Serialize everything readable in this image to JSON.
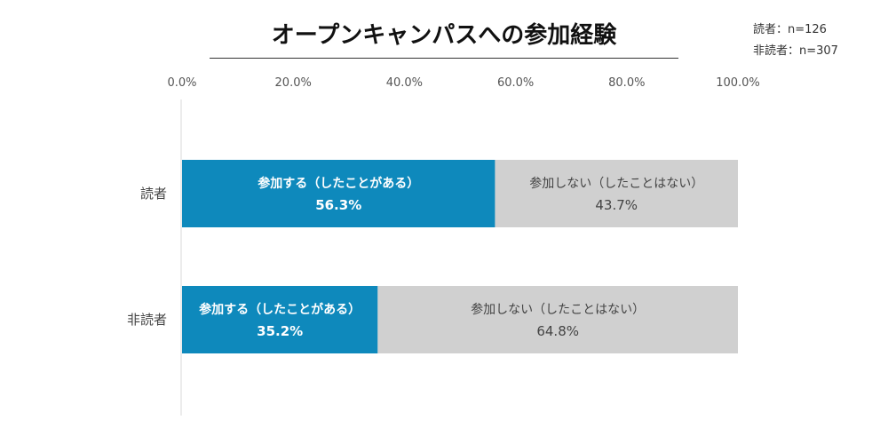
{
  "chart_data": {
    "type": "bar",
    "orientation": "horizontal",
    "stacked": true,
    "title": "オープンキャンパスへの参加経験",
    "sample_sizes": [
      "読者：n=126",
      "非読者：n=307"
    ],
    "categories": [
      "読者",
      "非読者"
    ],
    "series": [
      {
        "name": "参加する（したことがある）",
        "values": [
          56.3,
          35.2
        ],
        "labels": [
          "56.3%",
          "35.2%"
        ],
        "color": "#0e89bc"
      },
      {
        "name": "参加しない（したことはない）",
        "values": [
          43.7,
          64.8
        ],
        "labels": [
          "43.7%",
          "64.8%"
        ],
        "color": "#d0d0d0"
      }
    ],
    "xlim": [
      0,
      100
    ],
    "xticks": [
      "0.0%",
      "20.0%",
      "40.0%",
      "60.0%",
      "80.0%",
      "100.0%"
    ],
    "grid": false,
    "legend": "none"
  }
}
